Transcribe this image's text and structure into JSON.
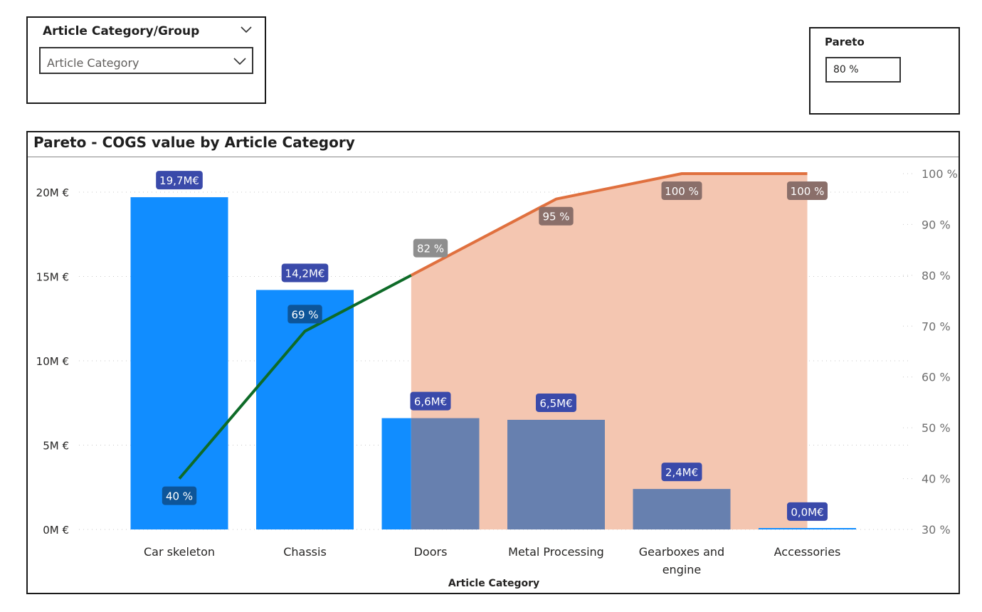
{
  "slicer": {
    "title": "Article Category/Group",
    "selected": "Article Category"
  },
  "pareto_param": {
    "label": "Pareto",
    "value": "80 %"
  },
  "chart": {
    "title": "Pareto - COGS value by Article Category"
  },
  "colors": {
    "bar": "#118DFF",
    "bar_over_threshold": "#6780AF",
    "line_under": "#0E6B28",
    "line_over": "#E0703E",
    "shade": "#F4C6B1",
    "bar_label_bg": "#3A4AAA",
    "pct_label_under_bg": "#0D5599",
    "pct_label_over_bg": "#8E8E8E",
    "pct_label_over_dark_bg": "#8A6F6A"
  },
  "chart_data": {
    "type": "bar",
    "title": "Pareto - COGS value by Article Category",
    "xlabel": "Article Category",
    "ylabel": "",
    "categories": [
      "Car skeleton",
      "Chassis",
      "Doors",
      "Metal Processing",
      "Gearboxes and engine",
      "Accessories"
    ],
    "series": [
      {
        "type": "bar",
        "values": [
          19.7,
          14.2,
          6.6,
          6.5,
          2.4,
          0.05
        ]
      },
      {
        "type": "line",
        "axis": "right",
        "values": [
          40,
          69,
          82,
          95,
          100,
          100
        ]
      }
    ],
    "bar_labels": [
      "19,7M€",
      "14,2M€",
      "6,6M€",
      "6,5M€",
      "2,4M€",
      "0,0M€"
    ],
    "line_labels": [
      "40 %",
      "69 %",
      "82 %",
      "95 %",
      "100 %",
      "100 %"
    ],
    "threshold_percent": 80,
    "ylim": [
      0,
      20
    ],
    "y_ticks": [
      0,
      5,
      10,
      15,
      20
    ],
    "y_tick_labels": [
      "0M €",
      "5M €",
      "10M €",
      "15M €",
      "20M €"
    ],
    "y2lim": [
      30,
      100
    ],
    "y2_ticks": [
      30,
      40,
      50,
      60,
      70,
      80,
      90,
      100
    ],
    "y2_tick_labels": [
      "30 %",
      "40 %",
      "50 %",
      "60 %",
      "70 %",
      "80 %",
      "90 %",
      "100 %"
    ],
    "x_tick_labels": [
      [
        "Car skeleton"
      ],
      [
        "Chassis"
      ],
      [
        "Doors"
      ],
      [
        "Metal Processing"
      ],
      [
        "Gearboxes and",
        "engine"
      ],
      [
        "Accessories"
      ]
    ],
    "grid": true
  }
}
